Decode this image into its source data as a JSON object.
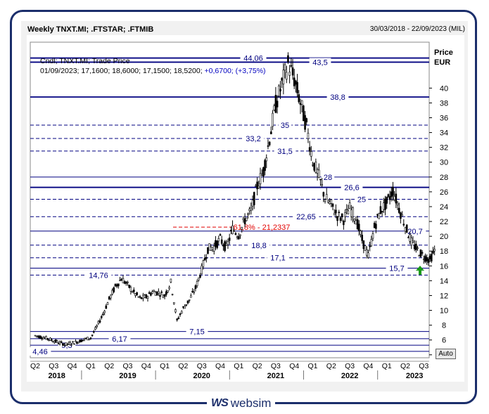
{
  "header": {
    "title": "Weekly TNXT.MI; .FTSTAR; .FTMIB",
    "period": "30/03/2018 - 22/09/2023 (MIL)"
  },
  "info": {
    "line1": "Cndl; TNXT.MI; Trade Price",
    "line2_prefix": "01/09/2023; 17,1600; 18,6000; 17,1500; 18,5200; ",
    "line2_change": "+0,6700; (+3,75%)"
  },
  "auto_label": "Auto",
  "brand": {
    "mark": "WS",
    "name": "websim"
  },
  "colors": {
    "line": "#000080",
    "fib": "#e00000",
    "arrow": "#1a9a1a",
    "price": "#000000"
  },
  "chart_data": {
    "type": "candlestick",
    "y_axis": {
      "title": "Price",
      "unit": "EUR",
      "min": 3.6,
      "max": 46.2,
      "ticks": [
        4,
        6,
        8,
        10,
        12,
        14,
        16,
        18,
        20,
        22,
        24,
        26,
        28,
        30,
        32,
        34,
        36,
        38,
        40
      ]
    },
    "x_axis": {
      "quarters": [
        "Q2",
        "Q3",
        "Q4",
        "Q1",
        "Q2",
        "Q3",
        "Q4",
        "Q1",
        "Q2",
        "Q3",
        "Q4",
        "Q1",
        "Q2",
        "Q3",
        "Q4",
        "Q1",
        "Q2",
        "Q3",
        "Q4",
        "Q1",
        "Q2",
        "Q3"
      ],
      "years": [
        "2018",
        "2019",
        "2020",
        "2021",
        "2022",
        "2023"
      ]
    },
    "levels": [
      {
        "value": 44.06,
        "label": "44,06",
        "style": "solid"
      },
      {
        "value": 43.5,
        "label": "43,5",
        "style": "solid"
      },
      {
        "value": 38.8,
        "label": "38,8",
        "style": "solid"
      },
      {
        "value": 35,
        "label": "35",
        "style": "dashed"
      },
      {
        "value": 33.2,
        "label": "33,2",
        "style": "dashed"
      },
      {
        "value": 31.5,
        "label": "31,5",
        "style": "dashed"
      },
      {
        "value": 28,
        "label": "28",
        "style": "thin"
      },
      {
        "value": 26.6,
        "label": "26,6",
        "style": "solid"
      },
      {
        "value": 25,
        "label": "25",
        "style": "dashed"
      },
      {
        "value": 22.65,
        "label": "22,65",
        "style": "dashed"
      },
      {
        "value": 20.7,
        "label": "20,7",
        "style": "thin"
      },
      {
        "value": 18.8,
        "label": "18,8",
        "style": "dashed"
      },
      {
        "value": 17.1,
        "label": "17,1",
        "style": "dashed"
      },
      {
        "value": 15.7,
        "label": "15,7",
        "style": "thin"
      },
      {
        "value": 14.76,
        "label": "14,76",
        "style": "dashed"
      },
      {
        "value": 7.15,
        "label": "7,15",
        "style": "thin"
      },
      {
        "value": 6.17,
        "label": "6,17",
        "style": "thin"
      },
      {
        "value": 5.3,
        "label": "5,3",
        "style": "thin"
      },
      {
        "value": 4.46,
        "label": "4,46",
        "style": "thin"
      }
    ],
    "fib": {
      "value": 21.2337,
      "label": "61,8% - 21,2337"
    },
    "price_path": [
      [
        "2018-04",
        6.6
      ],
      [
        "2018-06",
        6.2
      ],
      [
        "2018-08",
        5.6
      ],
      [
        "2018-09",
        5.4
      ],
      [
        "2018-11",
        5.8
      ],
      [
        "2018-12",
        6.1
      ],
      [
        "2019-01",
        6.3
      ],
      [
        "2019-02",
        7.8
      ],
      [
        "2019-03",
        9.5
      ],
      [
        "2019-04",
        11.5
      ],
      [
        "2019-05",
        13.2
      ],
      [
        "2019-06",
        14.3
      ],
      [
        "2019-07",
        13.4
      ],
      [
        "2019-08",
        12.4
      ],
      [
        "2019-09",
        11.6
      ],
      [
        "2019-10",
        11.8
      ],
      [
        "2019-11",
        12.5
      ],
      [
        "2019-12",
        12.4
      ],
      [
        "2020-01",
        12.0
      ],
      [
        "2020-02",
        13.8
      ],
      [
        "2020-03",
        8.6
      ],
      [
        "2020-04",
        10.3
      ],
      [
        "2020-05",
        11.4
      ],
      [
        "2020-06",
        13.0
      ],
      [
        "2020-07",
        15.5
      ],
      [
        "2020-08",
        18.3
      ],
      [
        "2020-09",
        18.6
      ],
      [
        "2020-10",
        19.6
      ],
      [
        "2020-11",
        18.4
      ],
      [
        "2020-12",
        21.0
      ],
      [
        "2021-01",
        20.2
      ],
      [
        "2021-02",
        22.2
      ],
      [
        "2021-03",
        23.4
      ],
      [
        "2021-04",
        26.8
      ],
      [
        "2021-05",
        28.8
      ],
      [
        "2021-06",
        33.2
      ],
      [
        "2021-07",
        37.8
      ],
      [
        "2021-08",
        40.5
      ],
      [
        "2021-09",
        43.3
      ],
      [
        "2021-10",
        41.2
      ],
      [
        "2021-11",
        38.0
      ],
      [
        "2021-12",
        34.8
      ],
      [
        "2022-01",
        30.2
      ],
      [
        "2022-02",
        28.0
      ],
      [
        "2022-03",
        25.2
      ],
      [
        "2022-04",
        24.2
      ],
      [
        "2022-05",
        22.8
      ],
      [
        "2022-06",
        22.3
      ],
      [
        "2022-07",
        23.8
      ],
      [
        "2022-08",
        22.4
      ],
      [
        "2022-09",
        19.5
      ],
      [
        "2022-10",
        17.3
      ],
      [
        "2022-11",
        21.2
      ],
      [
        "2022-12",
        23.5
      ],
      [
        "2023-01",
        24.5
      ],
      [
        "2023-02",
        26.2
      ],
      [
        "2023-03",
        23.8
      ],
      [
        "2023-04",
        21.4
      ],
      [
        "2023-05",
        19.2
      ],
      [
        "2023-06",
        18.1
      ],
      [
        "2023-07",
        17.3
      ],
      [
        "2023-08",
        16.8
      ],
      [
        "2023-09",
        18.5
      ]
    ]
  }
}
